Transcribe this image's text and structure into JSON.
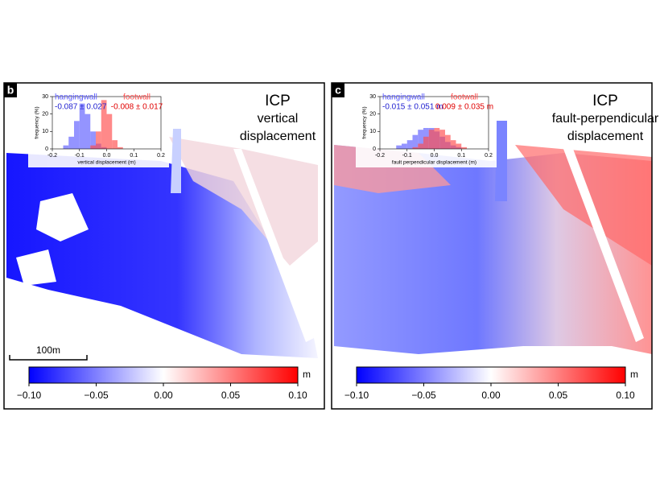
{
  "panels": [
    {
      "label": "b",
      "title": [
        "ICP",
        "vertical",
        "displacement"
      ],
      "scale_bar": "100m",
      "histogram": {
        "type": "histogram",
        "xlabel": "vertical displacement (m)",
        "ylabel": "frequency (%)",
        "xlim": [
          -0.2,
          0.2
        ],
        "ylim": [
          0,
          30
        ],
        "xticks": [
          -0.2,
          -0.1,
          {
            "value": 0,
            "label": "0.0"
          },
          0.1,
          0.2
        ],
        "yticks": [
          0,
          10,
          20,
          30
        ],
        "bins": [
          -0.2,
          -0.18,
          -0.16,
          -0.14,
          -0.12,
          -0.1,
          -0.08,
          -0.06,
          -0.04,
          -0.02,
          0,
          0.02,
          0.04,
          0.06,
          0.08,
          0.1,
          0.12,
          0.14,
          0.16,
          0.18,
          0.2
        ],
        "series": [
          {
            "name": "hangingwall",
            "stats": "-0.087 ± 0.027",
            "color": "#5a5aff",
            "values": [
              0,
              0,
              2,
              7,
              16,
              26,
              20,
              10,
              3,
              1,
              0,
              0,
              0,
              0,
              0,
              0,
              0,
              0,
              0,
              0
            ]
          },
          {
            "name": "footwall",
            "stats": "-0.008 ± 0.017",
            "color": "#ff4a4a",
            "values": [
              0,
              0,
              0,
              0,
              0,
              0,
              0,
              2,
              10,
              28,
              20,
              5,
              1,
              0,
              0,
              0,
              0,
              0,
              0,
              0
            ]
          }
        ]
      },
      "colorbar": {
        "unit": "m",
        "lim": [
          -0.1,
          0.1
        ],
        "colors": [
          "#0000ff",
          "#ffffff",
          "#ff0000"
        ],
        "ticks": [
          {
            "value": -0.1,
            "label": "−0.10"
          },
          {
            "value": -0.05,
            "label": "−0.05"
          },
          {
            "value": 0,
            "label": "0.00"
          },
          {
            "value": 0.05,
            "label": "0.05"
          },
          {
            "value": 0.1,
            "label": "0.10"
          }
        ]
      }
    },
    {
      "label": "c",
      "title": [
        "ICP",
        "fault-perpendicular",
        "displacement"
      ],
      "histogram": {
        "type": "histogram",
        "xlabel": "fault perpendicular displacement (m)",
        "ylabel": "frequency (%)",
        "xlim": [
          -0.2,
          0.2
        ],
        "ylim": [
          0,
          30
        ],
        "xticks": [
          -0.2,
          -0.1,
          {
            "value": 0,
            "label": "0.0"
          },
          0.1,
          0.2
        ],
        "yticks": [
          0,
          10,
          20,
          30
        ],
        "bins": [
          -0.2,
          -0.18,
          -0.16,
          -0.14,
          -0.12,
          -0.1,
          -0.08,
          -0.06,
          -0.04,
          -0.02,
          0,
          0.02,
          0.04,
          0.06,
          0.08,
          0.1,
          0.12,
          0.14,
          0.16,
          0.18,
          0.2
        ],
        "series": [
          {
            "name": "hangingwall",
            "stats": "-0.015 ± 0.051 m",
            "color": "#5a5aff",
            "values": [
              0,
              0,
              0,
              2,
              3,
              5,
              8,
              11,
              12,
              12,
              10,
              7,
              4,
              2,
              1,
              0,
              0,
              0,
              0,
              0
            ]
          },
          {
            "name": "footwall",
            "stats": "0.009 ± 0.035 m",
            "color": "#ff4a4a",
            "values": [
              0,
              0,
              0,
              0,
              0,
              0,
              1,
              3,
              7,
              11,
              12,
              11,
              8,
              5,
              3,
              1,
              0,
              0,
              0,
              0
            ]
          }
        ]
      },
      "colorbar": {
        "unit": "m",
        "lim": [
          -0.1,
          0.1
        ],
        "colors": [
          "#0000ff",
          "#ffffff",
          "#ff0000"
        ],
        "ticks": [
          {
            "value": -0.1,
            "label": "−0.10"
          },
          {
            "value": -0.05,
            "label": "−0.05"
          },
          {
            "value": 0,
            "label": "0.00"
          },
          {
            "value": 0.05,
            "label": "0.05"
          },
          {
            "value": 0.1,
            "label": "0.10"
          }
        ]
      }
    }
  ]
}
